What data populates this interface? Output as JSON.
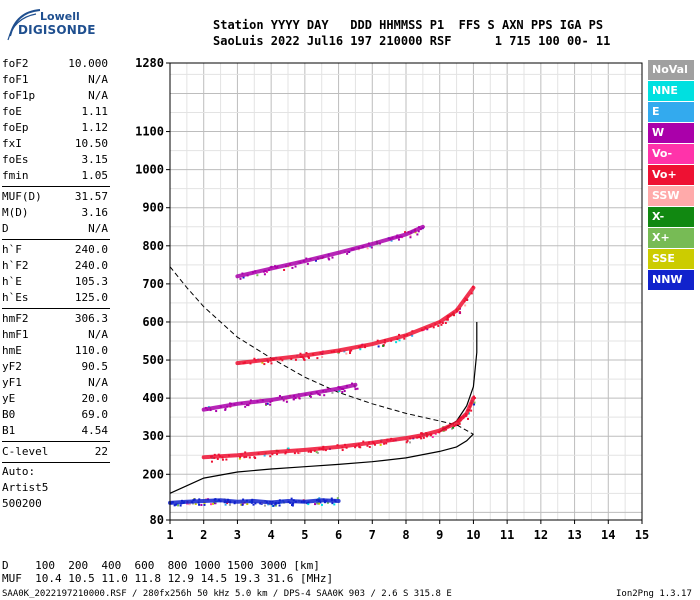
{
  "logo": {
    "line1": "Lowell",
    "line2": "DIGISONDE"
  },
  "header": {
    "line1": "Station YYYY DAY   DDD HHMMSS P1  FFS S AXN PPS IGA PS",
    "line2": "SaoLuis 2022 Jul16 197 210000 RSF      1 715 100 00- 11"
  },
  "params": {
    "group1": [
      {
        "label": "foF2",
        "value": "10.000"
      },
      {
        "label": "foF1",
        "value": "N/A"
      },
      {
        "label": "foF1p",
        "value": "N/A"
      },
      {
        "label": "foE",
        "value": "1.11"
      },
      {
        "label": "foEp",
        "value": "1.12"
      },
      {
        "label": "fxI",
        "value": "10.50"
      },
      {
        "label": "foEs",
        "value": "3.15"
      },
      {
        "label": "fmin",
        "value": "1.05"
      }
    ],
    "group2": [
      {
        "label": "MUF(D)",
        "value": "31.57"
      },
      {
        "label": "M(D)",
        "value": "3.16"
      },
      {
        "label": "D",
        "value": "N/A"
      }
    ],
    "group3": [
      {
        "label": "h`F",
        "value": "240.0"
      },
      {
        "label": "h`F2",
        "value": "240.0"
      },
      {
        "label": "h`E",
        "value": "105.3"
      },
      {
        "label": "h`Es",
        "value": "125.0"
      }
    ],
    "group4": [
      {
        "label": "hmF2",
        "value": "306.3"
      },
      {
        "label": "hmF1",
        "value": "N/A"
      },
      {
        "label": "hmE",
        "value": "110.0"
      },
      {
        "label": "yF2",
        "value": "90.5"
      },
      {
        "label": "yF1",
        "value": "N/A"
      },
      {
        "label": "yE",
        "value": "20.0"
      },
      {
        "label": "B0",
        "value": "69.0"
      },
      {
        "label": "B1",
        "value": "4.54"
      }
    ],
    "clevel": {
      "label": "C-level",
      "value": "22"
    },
    "auto": [
      "Auto:",
      "Artist5",
      "500200"
    ]
  },
  "legend": [
    {
      "label": "NoVal",
      "color": "#a0a0a0"
    },
    {
      "label": "NNE",
      "color": "#00e0e0"
    },
    {
      "label": "E",
      "color": "#33aaee"
    },
    {
      "label": "W",
      "color": "#aa00aa"
    },
    {
      "label": "Vo-",
      "color": "#ff33aa"
    },
    {
      "label": "Vo+",
      "color": "#ee1133"
    },
    {
      "label": "SSW",
      "color": "#ffaaaa"
    },
    {
      "label": "X-",
      "color": "#118811"
    },
    {
      "label": "X+",
      "color": "#77bb55"
    },
    {
      "label": "SSE",
      "color": "#cccc00"
    },
    {
      "label": "NNW",
      "color": "#1122cc"
    }
  ],
  "bottom": {
    "d_row": "D    100  200  400  600  800 1000 1500 3000 [km]",
    "muf_row": "MUF  10.4 10.5 11.0 11.8 12.9 14.5 19.3 31.6 [MHz]",
    "footer": "SAA0K_2022197210000.RSF / 280fx256h 50 kHz 5.0 km / DPS-4 SAA0K 903 / 2.6 S 315.8 E",
    "version": "Ion2Png 1.3.17"
  },
  "chart_data": {
    "type": "scatter",
    "title": "",
    "xlabel": "",
    "ylabel": "",
    "xlim": [
      1,
      15
    ],
    "ylim": [
      80,
      1280
    ],
    "x_ticks": [
      1,
      2,
      3,
      4,
      5,
      6,
      7,
      8,
      9,
      10,
      11,
      12,
      13,
      14,
      15
    ],
    "y_ticks": [
      80,
      200,
      300,
      400,
      500,
      600,
      700,
      800,
      900,
      1000,
      1100,
      1280
    ],
    "grid": true,
    "series": [
      {
        "color": "#000000",
        "style": "solid",
        "x": [
          1.0,
          1.5,
          2.0,
          3.0,
          4.0,
          5.0,
          6.0,
          7.0,
          8.0,
          9.0,
          9.5,
          9.8,
          10.0
        ],
        "y": [
          150,
          170,
          190,
          206,
          214,
          220,
          226,
          233,
          243,
          260,
          272,
          288,
          306
        ]
      },
      {
        "color": "#000000",
        "style": "solid",
        "x": [
          9.0,
          9.5,
          9.8,
          10.0,
          10.1,
          10.1
        ],
        "y": [
          312,
          340,
          380,
          430,
          520,
          600
        ]
      },
      {
        "color": "#000000",
        "style": "dashed",
        "x": [
          1.0,
          1.5,
          2.0,
          2.5,
          3.0,
          4.0,
          5.0,
          6.0,
          7.0,
          8.0,
          9.0,
          9.5,
          10.0
        ],
        "y": [
          745,
          690,
          640,
          600,
          560,
          505,
          455,
          415,
          385,
          360,
          340,
          330,
          305
        ]
      },
      {
        "color": "#ee1133",
        "style": "trace",
        "x": [
          2.0,
          3.0,
          4.0,
          5.0,
          6.0,
          7.0,
          8.0,
          8.5,
          9.0,
          9.5,
          9.8,
          10.0
        ],
        "y": [
          245,
          250,
          258,
          264,
          272,
          283,
          295,
          303,
          315,
          335,
          360,
          400
        ]
      },
      {
        "color": "#ee1133",
        "style": "trace",
        "x": [
          3.0,
          4.0,
          5.0,
          6.0,
          7.0,
          8.0,
          9.0,
          9.5,
          10.0
        ],
        "y": [
          492,
          502,
          512,
          525,
          542,
          565,
          600,
          630,
          690
        ]
      },
      {
        "color": "#aa00aa",
        "style": "trace",
        "x": [
          2.0,
          3.0,
          4.0,
          5.0,
          6.0,
          6.5
        ],
        "y": [
          370,
          385,
          395,
          410,
          425,
          435
        ]
      },
      {
        "color": "#aa00aa",
        "style": "trace",
        "x": [
          3.0,
          4.0,
          5.0,
          6.0,
          7.0,
          8.0,
          8.5
        ],
        "y": [
          720,
          740,
          760,
          782,
          805,
          830,
          850
        ]
      },
      {
        "color": "#1122cc",
        "style": "trace",
        "x": [
          1.0,
          1.5,
          2.0,
          2.5,
          3.0,
          3.5,
          4.0,
          4.5,
          5.0,
          5.5,
          6.0
        ],
        "y": [
          125,
          128,
          130,
          132,
          128,
          130,
          126,
          130,
          128,
          132,
          130
        ]
      }
    ]
  }
}
